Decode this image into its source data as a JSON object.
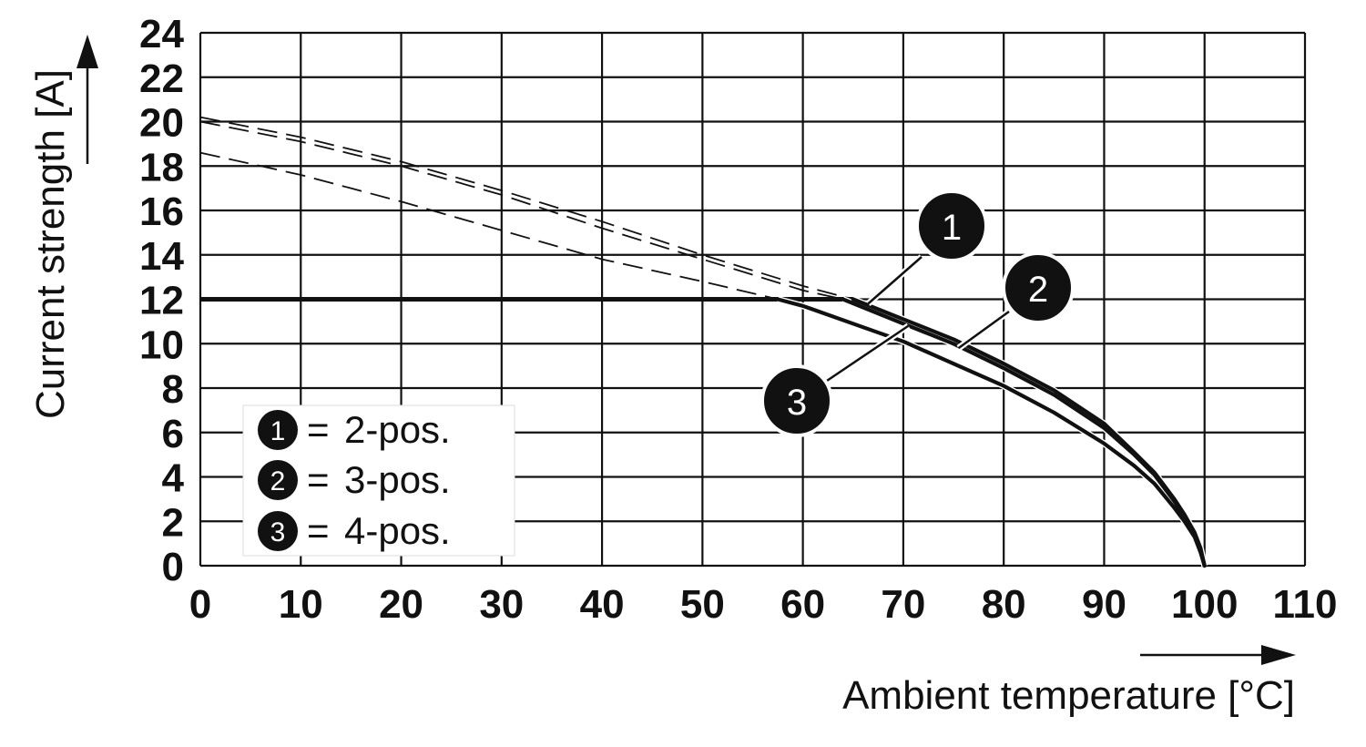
{
  "chart_data": {
    "type": "line",
    "xlabel": "Ambient temperature [°C]",
    "ylabel": "Current strength [A]",
    "xlim": [
      0,
      110
    ],
    "ylim": [
      0,
      24
    ],
    "x_ticks": [
      "0",
      "10",
      "20",
      "30",
      "40",
      "50",
      "60",
      "70",
      "80",
      "90",
      "100",
      "110"
    ],
    "y_ticks": [
      "0",
      "2",
      "4",
      "6",
      "8",
      "10",
      "12",
      "14",
      "16",
      "18",
      "20",
      "22",
      "24"
    ],
    "grid": true,
    "current_limit": 12,
    "series": [
      {
        "id": "1",
        "name": "2-pos.",
        "dashed_x": [
          0,
          10,
          20,
          30,
          40,
          50,
          60,
          65
        ],
        "dashed_y": [
          20.2,
          19.3,
          18.2,
          16.9,
          15.5,
          14.0,
          12.6,
          12.0
        ],
        "solid_x": [
          65,
          70,
          75,
          80,
          85,
          90,
          93,
          95,
          97,
          98,
          99,
          99.6,
          100
        ],
        "solid_y": [
          12.0,
          11.1,
          10.2,
          9.1,
          7.9,
          6.4,
          5.1,
          4.2,
          3.0,
          2.3,
          1.5,
          0.8,
          0
        ]
      },
      {
        "id": "2",
        "name": "3-pos.",
        "dashed_x": [
          0,
          10,
          20,
          30,
          40,
          50,
          60,
          64
        ],
        "dashed_y": [
          20.0,
          19.1,
          18.0,
          16.7,
          15.2,
          13.8,
          12.4,
          12.0
        ],
        "solid_x": [
          64,
          70,
          75,
          80,
          85,
          90,
          93,
          95,
          97,
          98,
          99,
          99.6,
          100
        ],
        "solid_y": [
          12.0,
          10.9,
          10.0,
          8.9,
          7.7,
          6.2,
          5.0,
          4.1,
          2.9,
          2.2,
          1.4,
          0.7,
          0
        ]
      },
      {
        "id": "3",
        "name": "4-pos.",
        "dashed_x": [
          0,
          10,
          20,
          30,
          40,
          50,
          57.5
        ],
        "dashed_y": [
          18.6,
          17.6,
          16.4,
          15.1,
          13.8,
          12.8,
          12.0
        ],
        "solid_x": [
          57.5,
          60,
          65,
          70,
          75,
          80,
          85,
          90,
          93,
          95,
          97,
          98,
          99,
          99.6,
          100
        ],
        "solid_y": [
          12.0,
          11.7,
          10.9,
          10.1,
          9.1,
          8.1,
          6.9,
          5.5,
          4.5,
          3.7,
          2.6,
          2.0,
          1.3,
          0.6,
          0
        ]
      }
    ],
    "legend": [
      {
        "num": "1",
        "eq": "=",
        "text": "2-pos."
      },
      {
        "num": "2",
        "eq": "=",
        "text": "3-pos."
      },
      {
        "num": "3",
        "eq": "=",
        "text": "4-pos."
      }
    ],
    "callouts": [
      {
        "num": "1",
        "x": 66.5,
        "y": 11.8
      },
      {
        "num": "2",
        "x": 75.5,
        "y": 9.8
      },
      {
        "num": "3",
        "x": 70.5,
        "y": 10.8
      }
    ]
  }
}
